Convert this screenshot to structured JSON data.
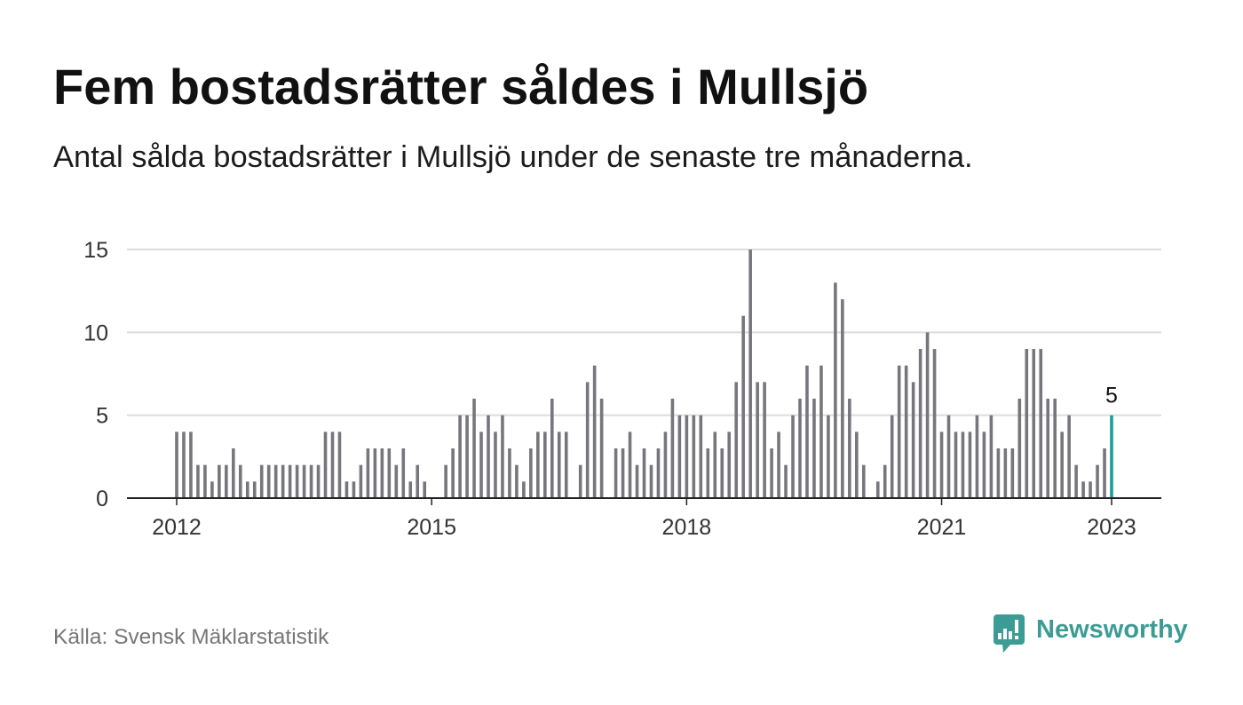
{
  "source": "Källa: Svensk Mäklarstatistik",
  "logo": {
    "name": "Newsworthy",
    "icon": "newsworthy-logo-icon",
    "color": "#3c9c95"
  },
  "colors": {
    "bar": "#77767c",
    "highlight": "#1a9e96",
    "grid": "#dcdcdc",
    "axis": "#222222",
    "tick_label": "#333333",
    "annotation": "#111111"
  },
  "chart_data": {
    "type": "bar",
    "title": "Fem bostadsrätter såldes i Mullsjö",
    "subtitle": "Antal sålda bostadsrätter i Mullsjö under de senaste tre månaderna.",
    "x": [
      "2012-01",
      "2012-02",
      "2012-03",
      "2012-04",
      "2012-05",
      "2012-06",
      "2012-07",
      "2012-08",
      "2012-09",
      "2012-10",
      "2012-11",
      "2012-12",
      "2013-01",
      "2013-02",
      "2013-03",
      "2013-04",
      "2013-05",
      "2013-06",
      "2013-07",
      "2013-08",
      "2013-09",
      "2013-10",
      "2013-11",
      "2013-12",
      "2014-01",
      "2014-02",
      "2014-03",
      "2014-04",
      "2014-05",
      "2014-06",
      "2014-07",
      "2014-08",
      "2014-09",
      "2014-10",
      "2014-11",
      "2014-12",
      "2015-01",
      "2015-02",
      "2015-03",
      "2015-04",
      "2015-05",
      "2015-06",
      "2015-07",
      "2015-08",
      "2015-09",
      "2015-10",
      "2015-11",
      "2015-12",
      "2016-01",
      "2016-02",
      "2016-03",
      "2016-04",
      "2016-05",
      "2016-06",
      "2016-07",
      "2016-08",
      "2016-09",
      "2016-10",
      "2016-11",
      "2016-12",
      "2017-01",
      "2017-02",
      "2017-03",
      "2017-04",
      "2017-05",
      "2017-06",
      "2017-07",
      "2017-08",
      "2017-09",
      "2017-10",
      "2017-11",
      "2017-12",
      "2018-01",
      "2018-02",
      "2018-03",
      "2018-04",
      "2018-05",
      "2018-06",
      "2018-07",
      "2018-08",
      "2018-09",
      "2018-10",
      "2018-11",
      "2018-12",
      "2019-01",
      "2019-02",
      "2019-03",
      "2019-04",
      "2019-05",
      "2019-06",
      "2019-07",
      "2019-08",
      "2019-09",
      "2019-10",
      "2019-11",
      "2019-12",
      "2020-01",
      "2020-02",
      "2020-03",
      "2020-04",
      "2020-05",
      "2020-06",
      "2020-07",
      "2020-08",
      "2020-09",
      "2020-10",
      "2020-11",
      "2020-12",
      "2021-01",
      "2021-02",
      "2021-03",
      "2021-04",
      "2021-05",
      "2021-06",
      "2021-07",
      "2021-08",
      "2021-09",
      "2021-10",
      "2021-11",
      "2021-12",
      "2022-01",
      "2022-02",
      "2022-03",
      "2022-04",
      "2022-05",
      "2022-06",
      "2022-07",
      "2022-08",
      "2022-09",
      "2022-10",
      "2022-11",
      "2022-12",
      "2023-01"
    ],
    "values": [
      4,
      4,
      4,
      2,
      2,
      1,
      2,
      2,
      3,
      2,
      1,
      1,
      2,
      2,
      2,
      2,
      2,
      2,
      2,
      2,
      2,
      4,
      4,
      4,
      1,
      1,
      2,
      3,
      3,
      3,
      3,
      2,
      3,
      1,
      2,
      1,
      0,
      0,
      2,
      3,
      5,
      5,
      6,
      4,
      5,
      4,
      5,
      3,
      2,
      1,
      3,
      4,
      4,
      6,
      4,
      4,
      0,
      2,
      7,
      8,
      6,
      0,
      3,
      3,
      4,
      2,
      3,
      2,
      3,
      4,
      6,
      5,
      5,
      5,
      5,
      3,
      4,
      3,
      4,
      7,
      11,
      15,
      7,
      7,
      3,
      4,
      2,
      5,
      6,
      8,
      6,
      8,
      5,
      13,
      12,
      6,
      4,
      2,
      0,
      1,
      2,
      5,
      8,
      8,
      7,
      9,
      10,
      9,
      4,
      5,
      4,
      4,
      4,
      5,
      4,
      5,
      3,
      3,
      3,
      6,
      9,
      9,
      9,
      6,
      6,
      4,
      5,
      2,
      1,
      1,
      2,
      3,
      5
    ],
    "highlight": {
      "x": "2023-01",
      "label": "5"
    },
    "ylim": [
      0,
      15
    ],
    "yticks": [
      0,
      5,
      10,
      15
    ],
    "xticks": [
      {
        "at": "2012-01",
        "label": "2012"
      },
      {
        "at": "2015-01",
        "label": "2015"
      },
      {
        "at": "2018-01",
        "label": "2018"
      },
      {
        "at": "2021-01",
        "label": "2021"
      },
      {
        "at": "2023-01",
        "label": "2023"
      }
    ],
    "grid": "horizontal",
    "legend": "none"
  }
}
